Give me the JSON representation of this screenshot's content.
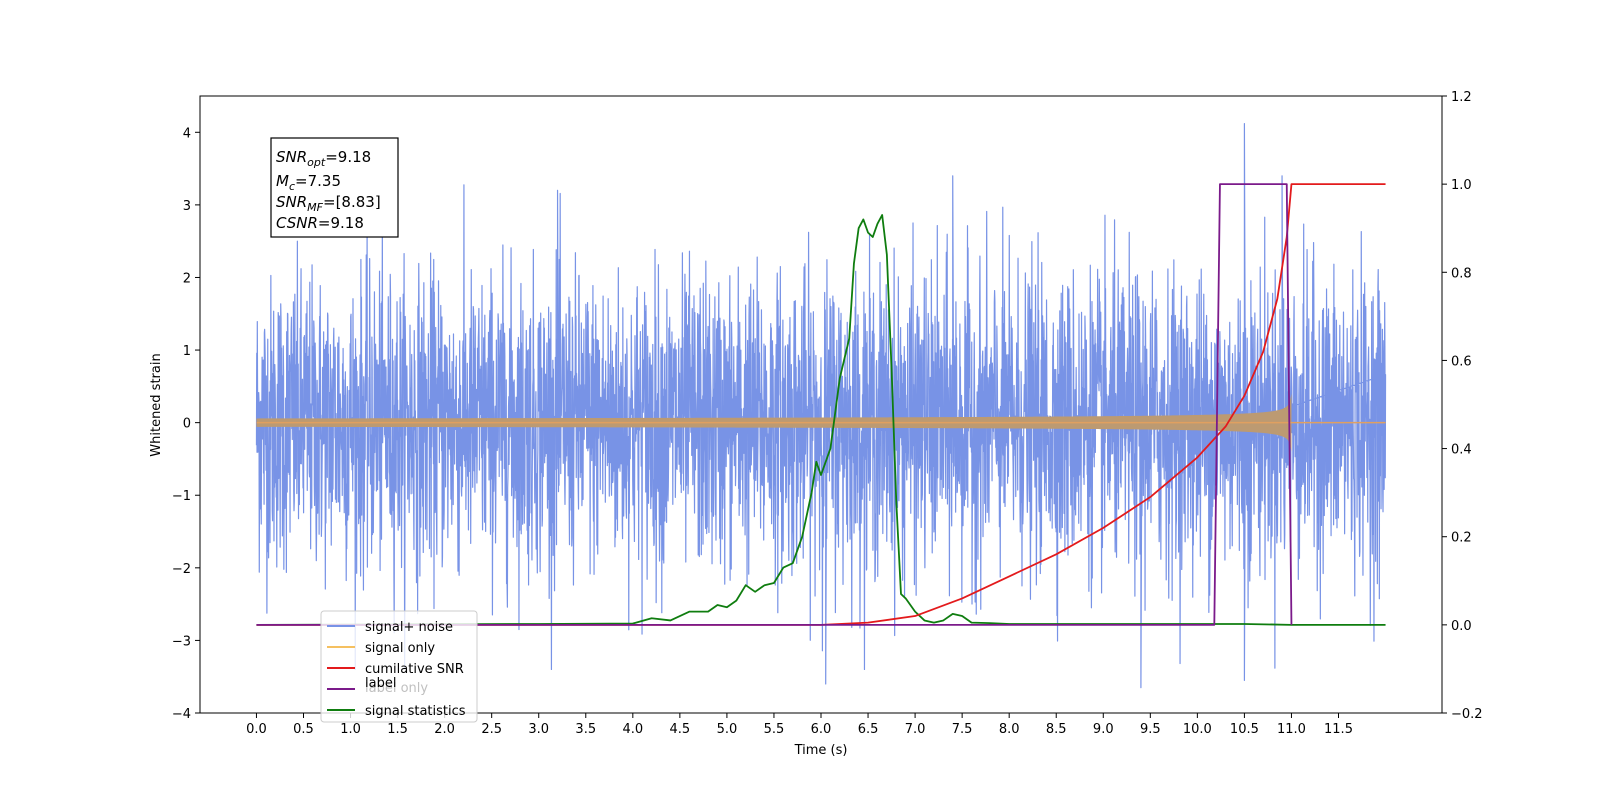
{
  "chart_data": {
    "type": "line",
    "xlabel": "Time (s)",
    "ylabel": "Whitened strain",
    "ylim_left": [
      -4,
      4.5
    ],
    "ylim_right": [
      -0.2,
      1.2
    ],
    "xlim": [
      -0.6,
      12.6
    ],
    "x_ticks": [
      "0.0",
      "0.5",
      "1.0",
      "1.5",
      "2.0",
      "2.5",
      "3.0",
      "3.5",
      "4.0",
      "4.5",
      "5.0",
      "5.5",
      "6.0",
      "6.5",
      "7.0",
      "7.5",
      "8.0",
      "8.5",
      "9.0",
      "9.5",
      "10.0",
      "10.5",
      "11.0",
      "11.5"
    ],
    "y_ticks_left": [
      "−4",
      "−3",
      "−2",
      "−1",
      "0",
      "1",
      "2",
      "3",
      "4"
    ],
    "y_ticks_right": [
      "−0.2",
      "0.0",
      "0.2",
      "0.4",
      "0.6",
      "0.8",
      "1.0",
      "1.2"
    ],
    "grid": false,
    "legend_position": "lower-left",
    "info_box": {
      "lines": [
        {
          "sym": "SNR",
          "sub": "opt",
          "val": "=9.18"
        },
        {
          "sym": "M",
          "sub": "c",
          "val": "=7.35"
        },
        {
          "sym": "SNR",
          "sub": "MF",
          "val": "=[8.83]"
        },
        {
          "sym": "CSNR",
          "sub": "",
          "val": "=9.18"
        }
      ]
    },
    "series": [
      {
        "name": "signal+ noise",
        "color": "#7893e6",
        "axis": "left",
        "kind": "noise",
        "x_range": [
          0,
          12
        ],
        "noise_sigma": 1.0,
        "spikes": [
          [
            10.5,
            4.12
          ],
          [
            6.05,
            -3.6
          ],
          [
            9.4,
            -3.65
          ],
          [
            10.5,
            -3.55
          ],
          [
            3.2,
            3.2
          ],
          [
            7.4,
            3.4
          ],
          [
            10.9,
            3.4
          ]
        ]
      },
      {
        "name": "signal only",
        "color": "#e0a060",
        "axis": "left",
        "kind": "chirp",
        "x_range": [
          0,
          12
        ],
        "merger_time": 11.0,
        "peak_amplitude": 1.0
      },
      {
        "name": "cumilative SNR",
        "color": "#e31a1c",
        "axis": "right",
        "x": [
          0,
          6.0,
          6.5,
          7.0,
          7.5,
          8.0,
          8.5,
          9.0,
          9.5,
          10.0,
          10.3,
          10.5,
          10.7,
          10.85,
          10.95,
          11.0,
          12.0
        ],
        "y": [
          0,
          0,
          0.005,
          0.02,
          0.06,
          0.11,
          0.16,
          0.22,
          0.29,
          0.38,
          0.45,
          0.52,
          0.62,
          0.74,
          0.88,
          1.0,
          1.0
        ]
      },
      {
        "name": "label",
        "color": "#7b1a8a",
        "axis": "right",
        "x": [
          0,
          10.18,
          10.24,
          10.95,
          11.0,
          11.0
        ],
        "y": [
          0,
          0,
          1,
          1,
          0,
          0
        ]
      },
      {
        "name": "signal statistics",
        "color": "#0f7d0f",
        "axis": "right",
        "x": [
          0,
          3.0,
          4.0,
          4.2,
          4.4,
          4.6,
          4.8,
          4.9,
          5.0,
          5.1,
          5.2,
          5.3,
          5.4,
          5.5,
          5.6,
          5.7,
          5.8,
          5.9,
          5.95,
          6.0,
          6.1,
          6.2,
          6.3,
          6.35,
          6.4,
          6.45,
          6.5,
          6.55,
          6.6,
          6.65,
          6.7,
          6.75,
          6.8,
          6.85,
          6.9,
          7.0,
          7.1,
          7.2,
          7.3,
          7.4,
          7.5,
          7.6,
          7.8,
          8.0,
          10.5,
          11.0,
          12.0
        ],
        "y": [
          0,
          0.002,
          0.003,
          0.015,
          0.01,
          0.03,
          0.03,
          0.045,
          0.04,
          0.055,
          0.09,
          0.075,
          0.09,
          0.095,
          0.13,
          0.14,
          0.2,
          0.3,
          0.37,
          0.34,
          0.4,
          0.56,
          0.65,
          0.82,
          0.9,
          0.92,
          0.89,
          0.88,
          0.91,
          0.93,
          0.84,
          0.58,
          0.28,
          0.07,
          0.06,
          0.03,
          0.01,
          0.005,
          0.01,
          0.025,
          0.02,
          0.005,
          0.004,
          0.002,
          0.002,
          0,
          0
        ]
      },
      {
        "name": "label only",
        "color": "#c0c0c0",
        "axis": "right",
        "legend_only": true
      }
    ]
  }
}
